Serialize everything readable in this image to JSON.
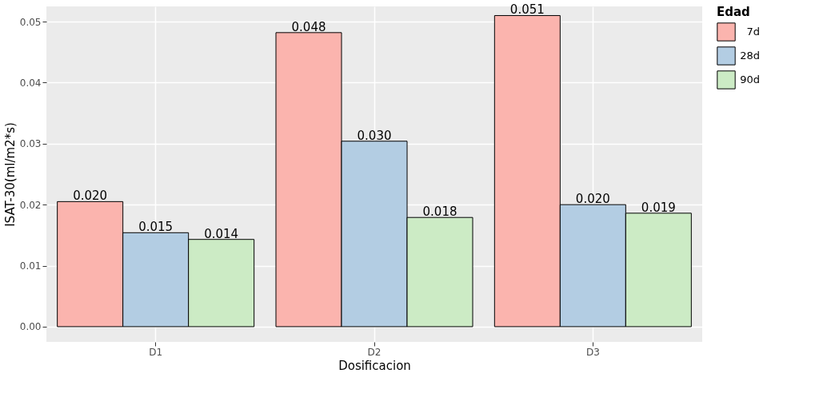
{
  "chart_data": {
    "type": "bar",
    "xlabel": "Dosificacion",
    "ylabel": "ISAT-30(ml/m2*s)",
    "legend_title": "Edad",
    "categories": [
      "D1",
      "D2",
      "D3"
    ],
    "series": [
      {
        "name": "7d",
        "color": "#fbb4ae",
        "values": [
          0.0205,
          0.0482,
          0.051
        ],
        "value_labels": [
          "0.020",
          "0.048",
          "0.051"
        ]
      },
      {
        "name": "28d",
        "color": "#b3cde3",
        "values": [
          0.0154,
          0.0304,
          0.02
        ],
        "value_labels": [
          "0.015",
          "0.030",
          "0.020"
        ]
      },
      {
        "name": "90d",
        "color": "#ccebc5",
        "values": [
          0.0143,
          0.0179,
          0.0186
        ],
        "value_labels": [
          "0.014",
          "0.018",
          "0.019"
        ]
      }
    ],
    "ylim": [
      -0.0025,
      0.0525
    ],
    "yticks": [
      {
        "value": 0,
        "label": "0.00"
      },
      {
        "value": 0.01,
        "label": "0.01"
      },
      {
        "value": 0.02,
        "label": "0.02"
      },
      {
        "value": 0.03,
        "label": "0.03"
      },
      {
        "value": 0.04,
        "label": "0.04"
      },
      {
        "value": 0.05,
        "label": "0.05"
      }
    ],
    "grid": true,
    "legend": "right"
  }
}
